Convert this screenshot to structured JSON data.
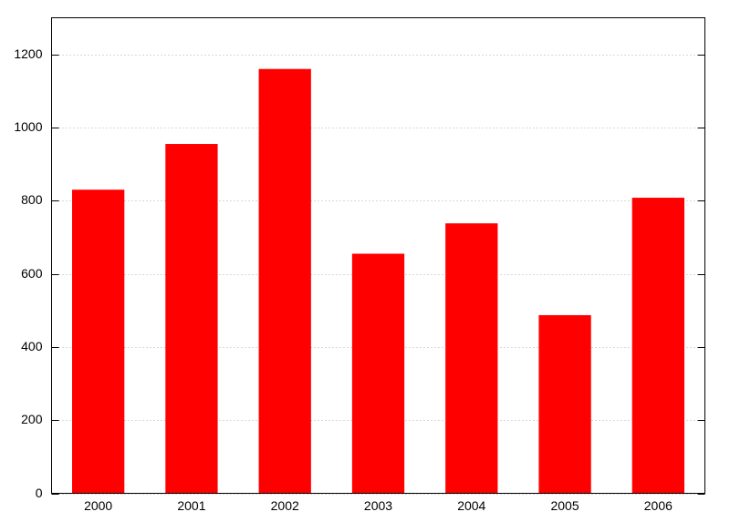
{
  "chart_data": {
    "type": "bar",
    "categories": [
      "2000",
      "2001",
      "2002",
      "2003",
      "2004",
      "2005",
      "2006"
    ],
    "values": [
      830,
      955,
      1160,
      655,
      738,
      487,
      808
    ],
    "color": "#ff0000",
    "ylim": [
      0,
      1300
    ],
    "yticks": [
      0,
      200,
      400,
      600,
      800,
      1000,
      1200
    ],
    "grid": true
  }
}
